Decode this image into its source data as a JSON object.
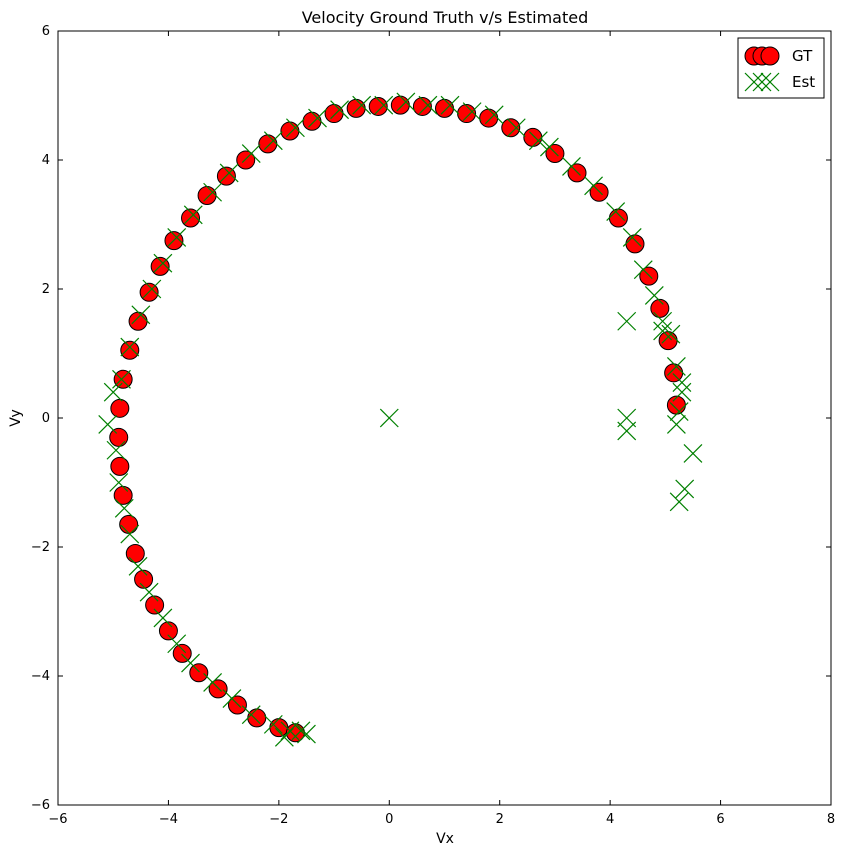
{
  "chart_data": {
    "type": "scatter",
    "title": "Velocity Ground Truth v/s Estimated",
    "xlabel": "Vx",
    "ylabel": "Vy",
    "xlim": [
      -6,
      8
    ],
    "ylim": [
      -6,
      6
    ],
    "xticks": [
      -6,
      -4,
      -2,
      0,
      2,
      4,
      6,
      8
    ],
    "yticks": [
      -6,
      -4,
      -2,
      0,
      2,
      4,
      6
    ],
    "xtick_labels": [
      "−6",
      "−4",
      "−2",
      "0",
      "2",
      "4",
      "6",
      "8"
    ],
    "ytick_labels": [
      "−6",
      "−4",
      "−2",
      "0",
      "2",
      "4",
      "6"
    ],
    "grid": false,
    "legend_position": "top-right",
    "series": [
      {
        "name": "GT",
        "marker": "circle",
        "color": "#ff0000",
        "edge_color": "#000000",
        "points": [
          [
            5.2,
            0.2
          ],
          [
            5.15,
            0.7
          ],
          [
            5.05,
            1.2
          ],
          [
            4.9,
            1.7
          ],
          [
            4.7,
            2.2
          ],
          [
            4.45,
            2.7
          ],
          [
            4.15,
            3.1
          ],
          [
            3.8,
            3.5
          ],
          [
            3.4,
            3.8
          ],
          [
            3.0,
            4.1
          ],
          [
            2.6,
            4.35
          ],
          [
            2.2,
            4.5
          ],
          [
            1.8,
            4.65
          ],
          [
            1.4,
            4.72
          ],
          [
            1.0,
            4.8
          ],
          [
            0.6,
            4.83
          ],
          [
            0.2,
            4.85
          ],
          [
            -0.2,
            4.83
          ],
          [
            -0.6,
            4.8
          ],
          [
            -1.0,
            4.72
          ],
          [
            -1.4,
            4.6
          ],
          [
            -1.8,
            4.45
          ],
          [
            -2.2,
            4.25
          ],
          [
            -2.6,
            4.0
          ],
          [
            -2.95,
            3.75
          ],
          [
            -3.3,
            3.45
          ],
          [
            -3.6,
            3.1
          ],
          [
            -3.9,
            2.75
          ],
          [
            -4.15,
            2.35
          ],
          [
            -4.35,
            1.95
          ],
          [
            -4.55,
            1.5
          ],
          [
            -4.7,
            1.05
          ],
          [
            -4.82,
            0.6
          ],
          [
            -4.88,
            0.15
          ],
          [
            -4.9,
            -0.3
          ],
          [
            -4.88,
            -0.75
          ],
          [
            -4.82,
            -1.2
          ],
          [
            -4.72,
            -1.65
          ],
          [
            -4.6,
            -2.1
          ],
          [
            -4.45,
            -2.5
          ],
          [
            -4.25,
            -2.9
          ],
          [
            -4.0,
            -3.3
          ],
          [
            -3.75,
            -3.65
          ],
          [
            -3.45,
            -3.95
          ],
          [
            -3.1,
            -4.2
          ],
          [
            -2.75,
            -4.45
          ],
          [
            -2.4,
            -4.65
          ],
          [
            -2.0,
            -4.8
          ],
          [
            -1.7,
            -4.88
          ]
        ]
      },
      {
        "name": "Est",
        "marker": "x",
        "color": "#008000",
        "points": [
          [
            5.25,
            0.1
          ],
          [
            5.3,
            0.4
          ],
          [
            5.2,
            0.8
          ],
          [
            5.1,
            1.3
          ],
          [
            4.95,
            1.5
          ],
          [
            4.8,
            1.9
          ],
          [
            4.6,
            2.3
          ],
          [
            4.4,
            2.8
          ],
          [
            4.1,
            3.2
          ],
          [
            3.7,
            3.6
          ],
          [
            3.3,
            3.9
          ],
          [
            2.9,
            4.2
          ],
          [
            2.7,
            4.3
          ],
          [
            2.3,
            4.5
          ],
          [
            1.9,
            4.7
          ],
          [
            1.5,
            4.75
          ],
          [
            1.1,
            4.85
          ],
          [
            0.7,
            4.85
          ],
          [
            0.3,
            4.9
          ],
          [
            -0.1,
            4.85
          ],
          [
            -0.5,
            4.85
          ],
          [
            -0.9,
            4.78
          ],
          [
            -1.3,
            4.65
          ],
          [
            -1.7,
            4.5
          ],
          [
            -2.1,
            4.3
          ],
          [
            -2.5,
            4.1
          ],
          [
            -2.9,
            3.8
          ],
          [
            -3.2,
            3.5
          ],
          [
            -3.55,
            3.15
          ],
          [
            -3.85,
            2.8
          ],
          [
            -4.1,
            2.4
          ],
          [
            -4.3,
            2.0
          ],
          [
            -4.5,
            1.6
          ],
          [
            -4.7,
            1.1
          ],
          [
            -4.85,
            0.6
          ],
          [
            -5.0,
            0.4
          ],
          [
            -5.1,
            -0.1
          ],
          [
            -4.95,
            -0.5
          ],
          [
            -4.9,
            -1.0
          ],
          [
            -4.8,
            -1.4
          ],
          [
            -4.7,
            -1.8
          ],
          [
            -4.55,
            -2.3
          ],
          [
            -4.35,
            -2.7
          ],
          [
            -4.1,
            -3.1
          ],
          [
            -3.85,
            -3.5
          ],
          [
            -3.6,
            -3.8
          ],
          [
            -3.2,
            -4.1
          ],
          [
            -2.85,
            -4.35
          ],
          [
            -2.5,
            -4.6
          ],
          [
            -2.1,
            -4.75
          ],
          [
            -1.8,
            -4.85
          ],
          [
            -1.5,
            -4.9
          ],
          [
            -1.9,
            -4.95
          ],
          [
            -1.6,
            -4.85
          ],
          [
            0.0,
            0.0
          ],
          [
            4.3,
            1.5
          ],
          [
            4.3,
            0.0
          ],
          [
            4.3,
            -0.2
          ],
          [
            5.5,
            -0.55
          ],
          [
            5.35,
            -1.1
          ],
          [
            5.25,
            -1.3
          ],
          [
            5.2,
            -0.1
          ],
          [
            5.3,
            0.55
          ],
          [
            4.95,
            1.35
          ]
        ]
      }
    ]
  }
}
